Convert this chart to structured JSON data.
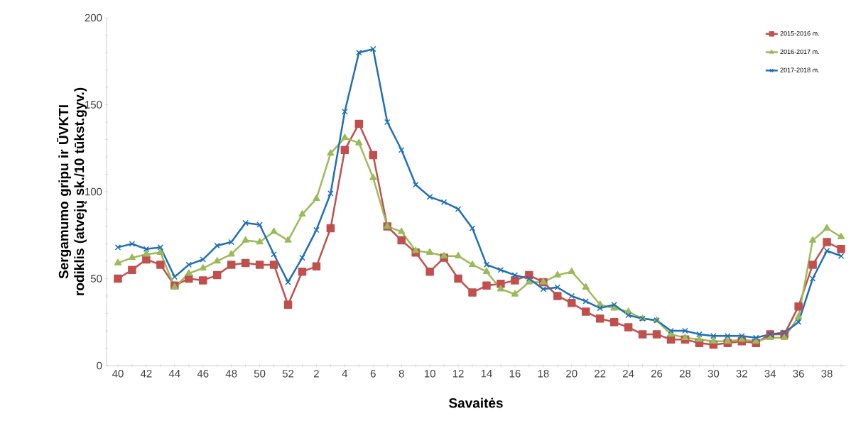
{
  "chart_data": {
    "type": "line",
    "xlabel": "Savaitės",
    "ylabel": "Sergamumo gripu ir ŪVKTI rodiklis (atvejų sk./10 tūkst.gyv.)",
    "categories": [
      "40",
      null,
      "42",
      null,
      "44",
      null,
      "46",
      null,
      "48",
      null,
      "50",
      null,
      "52",
      null,
      "2",
      null,
      "4",
      null,
      "6",
      null,
      "8",
      null,
      "10",
      null,
      "12",
      null,
      "14",
      null,
      "16",
      null,
      "18",
      null,
      "20",
      null,
      "22",
      null,
      "24",
      null,
      "26",
      null,
      "28",
      null,
      "30",
      null,
      "32",
      null,
      "34",
      null,
      "36",
      null,
      "38",
      null
    ],
    "ylim": [
      0,
      200
    ],
    "yticks": [
      0,
      50,
      100,
      150,
      200
    ],
    "legend": "top right",
    "line_style": "solid",
    "series": [
      {
        "name": "2015-2016 m.",
        "color": "#c0504d",
        "marker": "square",
        "values": [
          50,
          55,
          61,
          58,
          46,
          50,
          49,
          52,
          58,
          59,
          58,
          58,
          35,
          54,
          57,
          79,
          124,
          139,
          121,
          80,
          72,
          65,
          54,
          62,
          50,
          42,
          46,
          47,
          49,
          52,
          48,
          40,
          36,
          31,
          27,
          25,
          22,
          18,
          18,
          15,
          15,
          13,
          12,
          13,
          14,
          13,
          18,
          18,
          34,
          58,
          71,
          67
        ]
      },
      {
        "name": "2016-2017 m.",
        "color": "#9bbb59",
        "marker": "triangle",
        "values": [
          59,
          62,
          64,
          65,
          45,
          53,
          56,
          60,
          64,
          72,
          71,
          77,
          72,
          87,
          96,
          122,
          131,
          128,
          108,
          80,
          77,
          66,
          65,
          63,
          63,
          58,
          54,
          44,
          41,
          48,
          48,
          52,
          54,
          45,
          35,
          33,
          31,
          27,
          26,
          18,
          16,
          15,
          14,
          14,
          15,
          14,
          16,
          16,
          28,
          72,
          79,
          74
        ]
      },
      {
        "name": "2017-2018 m.",
        "color": "#1f6fb8",
        "marker": "cross",
        "values": [
          68,
          70,
          67,
          68,
          51,
          58,
          61,
          69,
          71,
          82,
          81,
          64,
          48,
          62,
          78,
          99,
          146,
          180,
          182,
          140,
          124,
          104,
          97,
          94,
          90,
          79,
          58,
          55,
          52,
          50,
          44,
          45,
          40,
          37,
          33,
          35,
          29,
          27,
          26,
          20,
          20,
          18,
          17,
          17,
          17,
          16,
          18,
          19,
          25,
          50,
          66,
          63
        ]
      }
    ]
  }
}
